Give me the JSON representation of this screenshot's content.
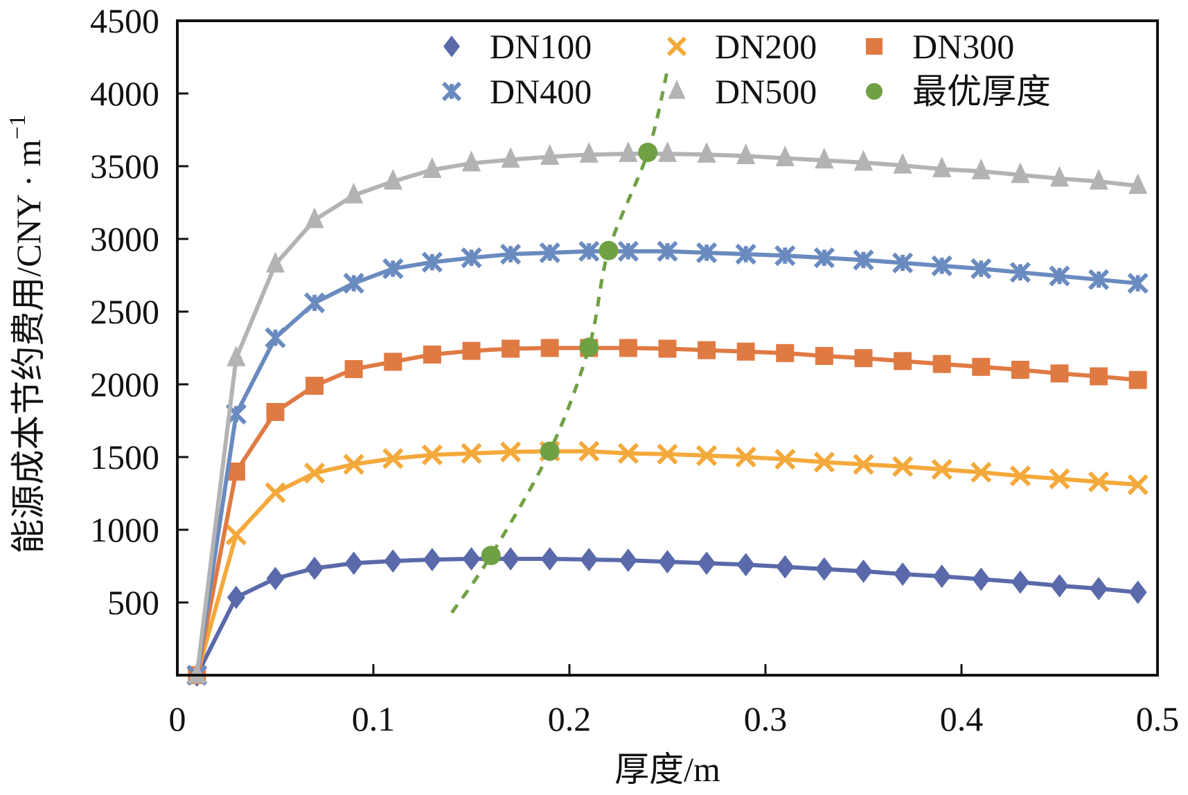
{
  "chart_data": {
    "type": "line",
    "title": "",
    "xlabel": "厚度/m",
    "ylabel": "能源成本节约费用/CNY · m",
    "ylabel_superscript": "−1",
    "xlim": [
      0,
      0.5
    ],
    "ylim": [
      0,
      4500
    ],
    "x_ticks": [
      0,
      0.1,
      0.2,
      0.3,
      0.4,
      0.5
    ],
    "x_tick_labels": [
      "0",
      "0.1",
      "0.2",
      "0.3",
      "0.4",
      "0.5"
    ],
    "y_ticks": [
      500,
      1000,
      1500,
      2000,
      2500,
      3000,
      3500,
      4000,
      4500
    ],
    "y_tick_labels": [
      "500",
      "1000",
      "1500",
      "2000",
      "2500",
      "3000",
      "3500",
      "4000",
      "4500"
    ],
    "grid": false,
    "legend_position": "top-right",
    "x": [
      0.01,
      0.03,
      0.05,
      0.07,
      0.09,
      0.11,
      0.13,
      0.15,
      0.17,
      0.19,
      0.21,
      0.23,
      0.25,
      0.27,
      0.29,
      0.31,
      0.33,
      0.35,
      0.37,
      0.39,
      0.41,
      0.43,
      0.45,
      0.47,
      0.49
    ],
    "series": [
      {
        "name": "DN100",
        "marker": "diamond",
        "color": "#5A69AA",
        "values": [
          0,
          535,
          665,
          735,
          770,
          785,
          795,
          800,
          800,
          800,
          795,
          790,
          780,
          770,
          760,
          745,
          730,
          715,
          695,
          680,
          660,
          640,
          615,
          595,
          570
        ]
      },
      {
        "name": "DN200",
        "marker": "x",
        "color": "#F3A93B",
        "values": [
          0,
          965,
          1255,
          1390,
          1450,
          1490,
          1515,
          1525,
          1535,
          1540,
          1540,
          1525,
          1520,
          1510,
          1500,
          1485,
          1465,
          1450,
          1435,
          1415,
          1395,
          1370,
          1350,
          1330,
          1310
        ]
      },
      {
        "name": "DN300",
        "marker": "square",
        "color": "#E07A43",
        "values": [
          0,
          1400,
          1810,
          1990,
          2105,
          2155,
          2205,
          2230,
          2245,
          2250,
          2250,
          2250,
          2245,
          2235,
          2225,
          2215,
          2195,
          2180,
          2160,
          2140,
          2120,
          2100,
          2075,
          2055,
          2030
        ]
      },
      {
        "name": "DN400",
        "marker": "asterisk",
        "color": "#6A8BBF",
        "values": [
          0,
          1795,
          2320,
          2560,
          2695,
          2795,
          2840,
          2870,
          2895,
          2905,
          2915,
          2915,
          2915,
          2905,
          2895,
          2885,
          2870,
          2855,
          2835,
          2815,
          2795,
          2770,
          2745,
          2720,
          2695
        ]
      },
      {
        "name": "DN500",
        "marker": "triangle",
        "color": "#B3B3B3",
        "values": [
          0,
          2180,
          2825,
          3130,
          3300,
          3395,
          3475,
          3520,
          3545,
          3565,
          3580,
          3585,
          3585,
          3580,
          3570,
          3555,
          3540,
          3525,
          3505,
          3480,
          3465,
          3440,
          3415,
          3395,
          3365
        ]
      }
    ],
    "optimal": {
      "name": "最优厚度",
      "marker": "circle",
      "color": "#70A044",
      "points": [
        {
          "x": 0.16,
          "y": 823
        },
        {
          "x": 0.19,
          "y": 1540
        },
        {
          "x": 0.21,
          "y": 2255
        },
        {
          "x": 0.22,
          "y": 2920
        },
        {
          "x": 0.24,
          "y": 3595
        }
      ],
      "trendline": {
        "style": "dashed",
        "x_range": [
          0.14,
          0.25
        ],
        "y_range": [
          430,
          4160
        ]
      }
    },
    "legend": [
      {
        "label": "DN100",
        "marker": "diamond",
        "color": "#5A69AA"
      },
      {
        "label": "DN200",
        "marker": "x",
        "color": "#F3A93B"
      },
      {
        "label": "DN300",
        "marker": "square",
        "color": "#E07A43"
      },
      {
        "label": "DN400",
        "marker": "asterisk",
        "color": "#6A8BBF"
      },
      {
        "label": "DN500",
        "marker": "triangle",
        "color": "#B3B3B3"
      },
      {
        "label": "最优厚度",
        "marker": "circle",
        "color": "#70A044"
      }
    ]
  }
}
